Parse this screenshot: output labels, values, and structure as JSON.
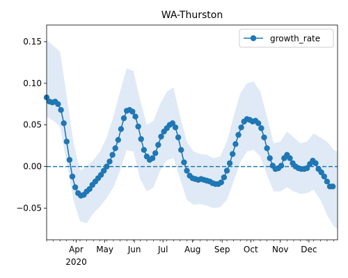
{
  "chart_data": {
    "type": "line",
    "title": "WA-Thurston",
    "xlabel": "",
    "ylabel": "",
    "xlim": [
      "2020-03-01",
      "2020-12-31"
    ],
    "ylim": [
      -0.088,
      0.17
    ],
    "yticks": [
      {
        "value": 0.15,
        "label": "0.15"
      },
      {
        "value": 0.1,
        "label": "0.10"
      },
      {
        "value": 0.05,
        "label": "0.05"
      },
      {
        "value": 0.0,
        "label": "0.00"
      },
      {
        "value": -0.05,
        "label": "−0.05"
      }
    ],
    "xticks": [
      {
        "date": "2020-04-01",
        "label": "Apr",
        "sublabel": "2020"
      },
      {
        "date": "2020-05-01",
        "label": "May"
      },
      {
        "date": "2020-06-01",
        "label": "Jun"
      },
      {
        "date": "2020-07-01",
        "label": "Jul"
      },
      {
        "date": "2020-08-01",
        "label": "Aug"
      },
      {
        "date": "2020-09-01",
        "label": "Sep"
      },
      {
        "date": "2020-10-01",
        "label": "Oct"
      },
      {
        "date": "2020-11-01",
        "label": "Nov"
      },
      {
        "date": "2020-12-01",
        "label": "Dec"
      }
    ],
    "grid": false,
    "legend": {
      "position": "top-right",
      "entries": [
        "growth_rate"
      ]
    },
    "reference_line": {
      "y": 0.0,
      "style": "dashed"
    },
    "colors": {
      "series": "#1f77b4",
      "band": "#dce8f5",
      "reference": "#1f77b4"
    },
    "series": [
      {
        "name": "growth_rate",
        "marker": "circle",
        "points": [
          [
            "2020-03-01",
            0.083
          ],
          [
            "2020-03-04",
            0.078
          ],
          [
            "2020-03-07",
            0.077
          ],
          [
            "2020-03-10",
            0.078
          ],
          [
            "2020-03-13",
            0.075
          ],
          [
            "2020-03-16",
            0.068
          ],
          [
            "2020-03-19",
            0.052
          ],
          [
            "2020-03-22",
            0.03
          ],
          [
            "2020-03-25",
            0.008
          ],
          [
            "2020-03-28",
            -0.012
          ],
          [
            "2020-03-31",
            -0.025
          ],
          [
            "2020-04-03",
            -0.032
          ],
          [
            "2020-04-06",
            -0.035
          ],
          [
            "2020-04-09",
            -0.034
          ],
          [
            "2020-04-12",
            -0.03
          ],
          [
            "2020-04-15",
            -0.027
          ],
          [
            "2020-04-18",
            -0.022
          ],
          [
            "2020-04-21",
            -0.018
          ],
          [
            "2020-04-24",
            -0.014
          ],
          [
            "2020-04-27",
            -0.01
          ],
          [
            "2020-04-30",
            -0.005
          ],
          [
            "2020-05-03",
            0.0
          ],
          [
            "2020-05-06",
            0.006
          ],
          [
            "2020-05-09",
            0.014
          ],
          [
            "2020-05-12",
            0.022
          ],
          [
            "2020-05-15",
            0.032
          ],
          [
            "2020-05-18",
            0.045
          ],
          [
            "2020-05-21",
            0.058
          ],
          [
            "2020-05-24",
            0.067
          ],
          [
            "2020-05-27",
            0.068
          ],
          [
            "2020-05-30",
            0.066
          ],
          [
            "2020-06-02",
            0.06
          ],
          [
            "2020-06-05",
            0.048
          ],
          [
            "2020-06-08",
            0.033
          ],
          [
            "2020-06-11",
            0.02
          ],
          [
            "2020-06-14",
            0.012
          ],
          [
            "2020-06-17",
            0.008
          ],
          [
            "2020-06-20",
            0.01
          ],
          [
            "2020-06-23",
            0.016
          ],
          [
            "2020-06-26",
            0.026
          ],
          [
            "2020-06-29",
            0.036
          ],
          [
            "2020-07-02",
            0.042
          ],
          [
            "2020-07-05",
            0.046
          ],
          [
            "2020-07-08",
            0.05
          ],
          [
            "2020-07-11",
            0.052
          ],
          [
            "2020-07-14",
            0.047
          ],
          [
            "2020-07-17",
            0.035
          ],
          [
            "2020-07-20",
            0.02
          ],
          [
            "2020-07-23",
            0.005
          ],
          [
            "2020-07-26",
            -0.005
          ],
          [
            "2020-07-29",
            -0.011
          ],
          [
            "2020-08-01",
            -0.014
          ],
          [
            "2020-08-04",
            -0.015
          ],
          [
            "2020-08-07",
            -0.016
          ],
          [
            "2020-08-10",
            -0.015
          ],
          [
            "2020-08-13",
            -0.016
          ],
          [
            "2020-08-16",
            -0.017
          ],
          [
            "2020-08-19",
            -0.018
          ],
          [
            "2020-08-22",
            -0.02
          ],
          [
            "2020-08-25",
            -0.021
          ],
          [
            "2020-08-28",
            -0.021
          ],
          [
            "2020-08-31",
            -0.019
          ],
          [
            "2020-09-03",
            -0.013
          ],
          [
            "2020-09-06",
            -0.005
          ],
          [
            "2020-09-09",
            0.004
          ],
          [
            "2020-09-12",
            0.015
          ],
          [
            "2020-09-15",
            0.027
          ],
          [
            "2020-09-18",
            0.038
          ],
          [
            "2020-09-21",
            0.047
          ],
          [
            "2020-09-24",
            0.054
          ],
          [
            "2020-09-27",
            0.057
          ],
          [
            "2020-09-30",
            0.056
          ],
          [
            "2020-10-03",
            0.054
          ],
          [
            "2020-10-06",
            0.055
          ],
          [
            "2020-10-09",
            0.052
          ],
          [
            "2020-10-12",
            0.046
          ],
          [
            "2020-10-15",
            0.035
          ],
          [
            "2020-10-18",
            0.022
          ],
          [
            "2020-10-21",
            0.01
          ],
          [
            "2020-10-24",
            0.001
          ],
          [
            "2020-10-27",
            -0.003
          ],
          [
            "2020-10-30",
            -0.002
          ],
          [
            "2020-11-02",
            0.001
          ],
          [
            "2020-11-05",
            0.01
          ],
          [
            "2020-11-08",
            0.014
          ],
          [
            "2020-11-11",
            0.01
          ],
          [
            "2020-11-14",
            0.004
          ],
          [
            "2020-11-17",
            0.0
          ],
          [
            "2020-11-20",
            -0.002
          ],
          [
            "2020-11-23",
            -0.003
          ],
          [
            "2020-11-26",
            -0.003
          ],
          [
            "2020-11-29",
            -0.002
          ],
          [
            "2020-12-02",
            0.003
          ],
          [
            "2020-12-05",
            0.007
          ],
          [
            "2020-12-08",
            0.004
          ],
          [
            "2020-12-11",
            -0.003
          ],
          [
            "2020-12-14",
            -0.007
          ],
          [
            "2020-12-17",
            -0.012
          ],
          [
            "2020-12-20",
            -0.018
          ],
          [
            "2020-12-23",
            -0.024
          ],
          [
            "2020-12-26",
            -0.024
          ]
        ]
      }
    ],
    "uncertainty_band": [
      [
        "2020-03-01",
        0.06,
        0.152
      ],
      [
        "2020-03-08",
        0.055,
        0.145
      ],
      [
        "2020-03-15",
        0.048,
        0.138
      ],
      [
        "2020-03-22",
        0.005,
        0.085
      ],
      [
        "2020-03-29",
        -0.04,
        0.03
      ],
      [
        "2020-04-05",
        -0.066,
        -0.005
      ],
      [
        "2020-04-12",
        -0.068,
        0.0
      ],
      [
        "2020-04-19",
        -0.056,
        0.008
      ],
      [
        "2020-04-26",
        -0.048,
        0.018
      ],
      [
        "2020-05-03",
        -0.038,
        0.035
      ],
      [
        "2020-05-10",
        -0.025,
        0.06
      ],
      [
        "2020-05-17",
        -0.005,
        0.09
      ],
      [
        "2020-05-24",
        0.02,
        0.118
      ],
      [
        "2020-05-31",
        0.018,
        0.115
      ],
      [
        "2020-06-07",
        -0.015,
        0.08
      ],
      [
        "2020-06-14",
        -0.03,
        0.05
      ],
      [
        "2020-06-21",
        -0.025,
        0.055
      ],
      [
        "2020-06-28",
        -0.005,
        0.075
      ],
      [
        "2020-07-05",
        0.008,
        0.09
      ],
      [
        "2020-07-12",
        0.01,
        0.095
      ],
      [
        "2020-07-19",
        -0.015,
        0.06
      ],
      [
        "2020-07-26",
        -0.04,
        0.03
      ],
      [
        "2020-08-02",
        -0.046,
        0.018
      ],
      [
        "2020-08-09",
        -0.045,
        0.015
      ],
      [
        "2020-08-16",
        -0.047,
        0.014
      ],
      [
        "2020-08-23",
        -0.05,
        0.01
      ],
      [
        "2020-08-30",
        -0.049,
        0.012
      ],
      [
        "2020-09-06",
        -0.04,
        0.03
      ],
      [
        "2020-09-13",
        -0.018,
        0.06
      ],
      [
        "2020-09-20",
        0.005,
        0.088
      ],
      [
        "2020-09-27",
        0.018,
        0.1
      ],
      [
        "2020-10-04",
        0.02,
        0.102
      ],
      [
        "2020-10-11",
        0.012,
        0.09
      ],
      [
        "2020-10-18",
        -0.01,
        0.06
      ],
      [
        "2020-10-25",
        -0.03,
        0.028
      ],
      [
        "2020-11-01",
        -0.03,
        0.03
      ],
      [
        "2020-11-08",
        -0.025,
        0.042
      ],
      [
        "2020-11-15",
        -0.03,
        0.035
      ],
      [
        "2020-11-22",
        -0.033,
        0.028
      ],
      [
        "2020-11-29",
        -0.032,
        0.03
      ],
      [
        "2020-12-06",
        -0.028,
        0.04
      ],
      [
        "2020-12-13",
        -0.04,
        0.035
      ],
      [
        "2020-12-20",
        -0.058,
        0.03
      ],
      [
        "2020-12-27",
        -0.072,
        0.02
      ],
      [
        "2020-12-31",
        -0.075,
        0.018
      ]
    ]
  }
}
